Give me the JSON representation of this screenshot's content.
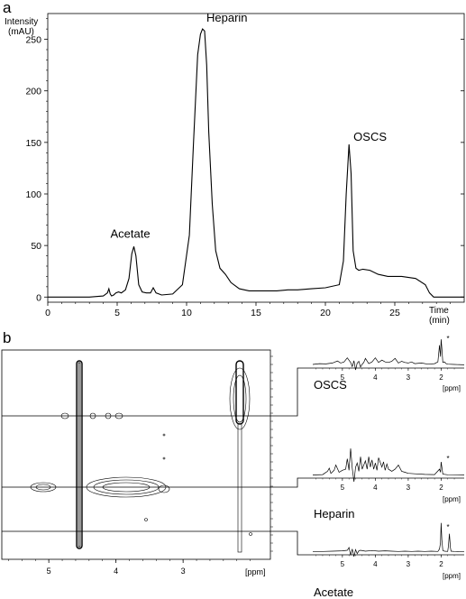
{
  "chart_data": [
    {
      "panel": "a",
      "type": "line",
      "ylabel": "Intensity (mAU)",
      "ylabel_lines": [
        "Intensity",
        "(mAU)"
      ],
      "xlabel": "Time (min)",
      "xlabel_lines": [
        "Time",
        "(min)"
      ],
      "xlim": [
        0,
        30
      ],
      "ylim": [
        -5,
        275
      ],
      "x_ticks": [
        0,
        5,
        10,
        15,
        20,
        25
      ],
      "y_ticks": [
        0,
        50,
        100,
        150,
        200,
        250
      ],
      "annotations": [
        {
          "label": "Acetate",
          "x": 6.2,
          "y": 49
        },
        {
          "label": "Heparin",
          "x": 11.3,
          "y": 260
        },
        {
          "label": "OSCS",
          "x": 21.7,
          "y": 148
        }
      ],
      "series": [
        {
          "x": [
            0,
            3,
            4,
            4.3,
            4.4,
            4.5,
            4.6,
            4.75,
            4.9,
            5.1,
            5.3,
            5.6,
            5.85,
            6.05,
            6.2,
            6.35,
            6.55,
            6.8,
            7.1,
            7.4,
            7.6,
            7.8,
            8.2,
            9,
            9.7,
            10.2,
            10.5,
            10.8,
            11.0,
            11.15,
            11.3,
            11.45,
            11.6,
            11.85,
            12.1,
            12.4,
            12.8,
            13.2,
            13.8,
            14.5,
            15.5,
            16.5,
            17.3,
            18,
            19,
            20,
            21,
            21.3,
            21.5,
            21.7,
            21.85,
            22.0,
            22.2,
            22.4,
            22.7,
            23.2,
            23.8,
            24.5,
            25.5,
            26.5,
            27.2,
            27.5,
            27.8,
            28.5,
            30
          ],
          "y": [
            0,
            0,
            1,
            4,
            8,
            3,
            1,
            2,
            4,
            5,
            4,
            7,
            18,
            42,
            49,
            40,
            12,
            5,
            4,
            4,
            9,
            4,
            2,
            3,
            12,
            60,
            150,
            235,
            255,
            260,
            258,
            225,
            160,
            90,
            45,
            28,
            22,
            14,
            8,
            6,
            6,
            6,
            7,
            7,
            8,
            9,
            12,
            35,
            100,
            148,
            120,
            45,
            28,
            26,
            27,
            26,
            22,
            20,
            20,
            18,
            12,
            4,
            0,
            0,
            0
          ]
        }
      ]
    },
    {
      "panel": "b",
      "type": "heatmap",
      "xlabel": "[ppm]",
      "x_ticks": [
        5,
        4,
        3
      ],
      "xlim": [
        5.7,
        1.7
      ],
      "rows": [
        "OSCS",
        "Heparin",
        "Acetate"
      ]
    },
    {
      "type": "line",
      "name": "OSCS",
      "xlabel": "[ppm]",
      "x_ticks": [
        5,
        4,
        3,
        2
      ],
      "star_label": "*",
      "xlim": [
        5.9,
        1.3
      ],
      "series": [
        {
          "x": [
            5.9,
            5.7,
            5.5,
            5.3,
            5.15,
            5.05,
            4.95,
            4.85,
            4.75,
            4.7,
            4.65,
            4.6,
            4.55,
            4.5,
            4.45,
            4.4,
            4.35,
            4.3,
            4.2,
            4.1,
            4.0,
            3.9,
            3.8,
            3.7,
            3.6,
            3.5,
            3.4,
            3.3,
            3.2,
            3.1,
            3.0,
            2.9,
            2.8,
            2.6,
            2.4,
            2.2,
            2.1,
            2.05,
            2.02,
            2.0,
            1.98,
            1.95,
            1.9,
            1.85,
            1.8,
            1.6,
            1.3
          ],
          "y": [
            0.3,
            0.6,
            0.5,
            0.8,
            1.5,
            0.8,
            1.2,
            2.6,
            1.0,
            -0.4,
            1.6,
            -1.6,
            0.8,
            1.4,
            -0.6,
            0.4,
            1.0,
            2.4,
            0.6,
            1.2,
            2.6,
            1.0,
            1.8,
            1.2,
            1.0,
            1.4,
            2.4,
            0.8,
            1.4,
            1.0,
            0.8,
            1.2,
            0.6,
            0.8,
            0.4,
            0.6,
            1.2,
            7.0,
            3.0,
            9.0,
            6.0,
            1.0,
            1.2,
            0.6,
            0.4,
            0.3,
            0.2
          ]
        }
      ]
    },
    {
      "type": "line",
      "name": "Heparin",
      "xlabel": "[ppm]",
      "x_ticks": [
        5,
        4,
        3,
        2
      ],
      "star_label": "*",
      "xlim": [
        5.9,
        1.3
      ],
      "series": [
        {
          "x": [
            5.9,
            5.6,
            5.45,
            5.4,
            5.35,
            5.25,
            5.2,
            5.1,
            5.0,
            4.9,
            4.85,
            4.8,
            4.75,
            4.7,
            4.65,
            4.6,
            4.55,
            4.5,
            4.45,
            4.4,
            4.3,
            4.25,
            4.2,
            4.15,
            4.1,
            4.05,
            4.0,
            3.95,
            3.9,
            3.8,
            3.75,
            3.7,
            3.65,
            3.6,
            3.5,
            3.4,
            3.3,
            3.2,
            3.1,
            3.0,
            2.8,
            2.5,
            2.2,
            2.05,
            2.02,
            2.0,
            1.98,
            1.95,
            1.8,
            1.3
          ],
          "y": [
            0.2,
            0.4,
            2.0,
            3.5,
            1.0,
            2.5,
            5.0,
            1.5,
            2.5,
            3.0,
            8.0,
            2.5,
            13.0,
            3.5,
            -3.0,
            4.0,
            6.0,
            2.0,
            9.0,
            3.0,
            7.0,
            3.0,
            9.0,
            4.0,
            7.5,
            3.0,
            6.0,
            2.5,
            8.5,
            4.0,
            6.5,
            2.5,
            5.5,
            3.0,
            2.0,
            3.0,
            5.0,
            2.0,
            1.5,
            1.0,
            0.8,
            0.5,
            0.4,
            3.0,
            1.5,
            6.5,
            4.0,
            0.6,
            0.3,
            0.2
          ]
        }
      ]
    },
    {
      "type": "line",
      "name": "Acetate",
      "xlabel": "[ppm]",
      "x_ticks": [
        5,
        4,
        3,
        2
      ],
      "star_label": "*",
      "xlim": [
        5.9,
        1.3
      ],
      "series": [
        {
          "x": [
            5.9,
            5.6,
            5.3,
            5.0,
            4.85,
            4.8,
            4.75,
            4.7,
            4.65,
            4.6,
            4.55,
            4.5,
            4.45,
            4.3,
            4.1,
            3.9,
            3.7,
            3.5,
            3.3,
            3.1,
            2.9,
            2.7,
            2.5,
            2.3,
            2.1,
            2.05,
            2.02,
            2.0,
            1.98,
            1.95,
            1.9,
            1.8,
            1.78,
            1.75,
            1.72,
            1.7,
            1.6,
            1.3
          ],
          "y": [
            0.1,
            0.2,
            0.3,
            0.4,
            0.6,
            1.5,
            -1.0,
            1.0,
            -1.5,
            0.8,
            -0.5,
            0.4,
            0.6,
            0.3,
            0.5,
            0.3,
            0.4,
            0.3,
            0.2,
            0.3,
            0.2,
            0.3,
            0.2,
            0.3,
            0.2,
            1.0,
            3.0,
            9.5,
            4.0,
            0.5,
            0.3,
            0.2,
            2.0,
            6.0,
            1.5,
            0.3,
            0.2,
            0.1
          ]
        }
      ]
    },
    {
      "panel_label_a": "a",
      "panel_label_b": "b"
    }
  ]
}
